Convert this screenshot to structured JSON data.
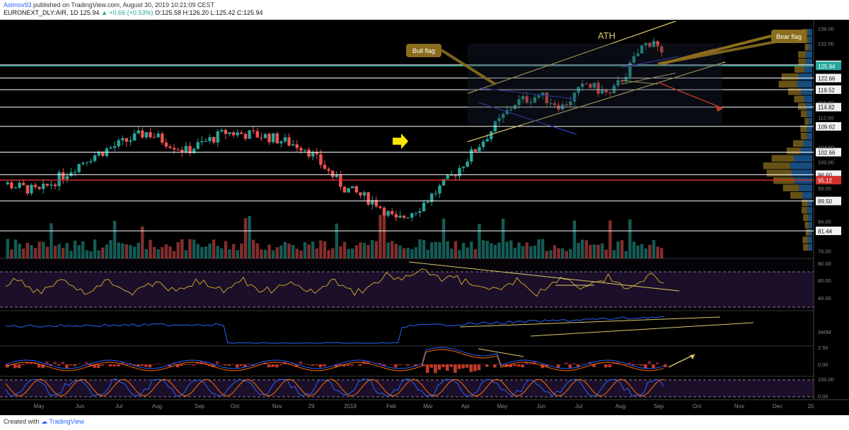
{
  "header": {
    "publisher": "Asimov93",
    "published_text": "published on TradingView.com, August 30, 2019 10:21:09 CEST",
    "symbol": "EURONEXT_DLY:AIR, 1D",
    "last": "125.94",
    "change": "+0.66 (+0.53%)",
    "ohlc": "O:125.58 H:126.20 L:125.42 C:125.94"
  },
  "footer": {
    "created_with": "Created with",
    "brand": "TradingView"
  },
  "chart_data": {
    "type": "candlestick",
    "symbol": "EURONEXT_DLY:AIR",
    "interval": "1D",
    "price_axis": {
      "ticks": [
        136.0,
        132.0,
        116.0,
        112.0,
        104.0,
        100.0,
        93.0,
        84.0,
        76.0
      ],
      "range": [
        74,
        138
      ]
    },
    "x_axis": {
      "labels": [
        "May",
        "Jun",
        "Jul",
        "Aug",
        "Sep",
        "Oct",
        "Nov",
        "29",
        "2019",
        "Feb",
        "Mar",
        "Apr",
        "May",
        "Jun",
        "Jul",
        "Aug",
        "Sep",
        "Oct",
        "Nov",
        "Dec",
        "20"
      ]
    },
    "levels": [
      {
        "value": 126.22,
        "color": "#ffffff"
      },
      {
        "value": 125.94,
        "color": "#26a69a"
      },
      {
        "value": 122.66,
        "color": "#ffffff"
      },
      {
        "value": 119.52,
        "color": "#ffffff"
      },
      {
        "value": 114.82,
        "color": "#ffffff"
      },
      {
        "value": 109.62,
        "color": "#ffffff"
      },
      {
        "value": 102.66,
        "color": "#ffffff"
      },
      {
        "value": 96.6,
        "color": "#ffffff"
      },
      {
        "value": 95.12,
        "color": "#d32f2f"
      },
      {
        "value": 89.5,
        "color": "#ffffff"
      },
      {
        "value": 81.44,
        "color": "#ffffff"
      }
    ],
    "annotations": [
      {
        "text": "ATH"
      },
      {
        "text": "Bull flag"
      },
      {
        "text": "Bear flag"
      }
    ],
    "rsi_axis": {
      "ticks": [
        80.0,
        60.0,
        40.0
      ]
    },
    "volume_axis": {
      "ticks": [
        "340M"
      ]
    },
    "macd_axis": {
      "ticks": [
        2.5,
        0.0
      ]
    },
    "stoch_axis": {
      "ticks": [
        100.0,
        0.0
      ]
    },
    "colors": {
      "up": "#26a69a",
      "down": "#ef5350",
      "background": "#000000",
      "levels": "#ffffff",
      "trend": "#d9c86a",
      "rsi": "#c9a227",
      "rsi_band": "#1c0f2a",
      "macd": "#2962ff",
      "signal": "#ff6d00"
    }
  }
}
